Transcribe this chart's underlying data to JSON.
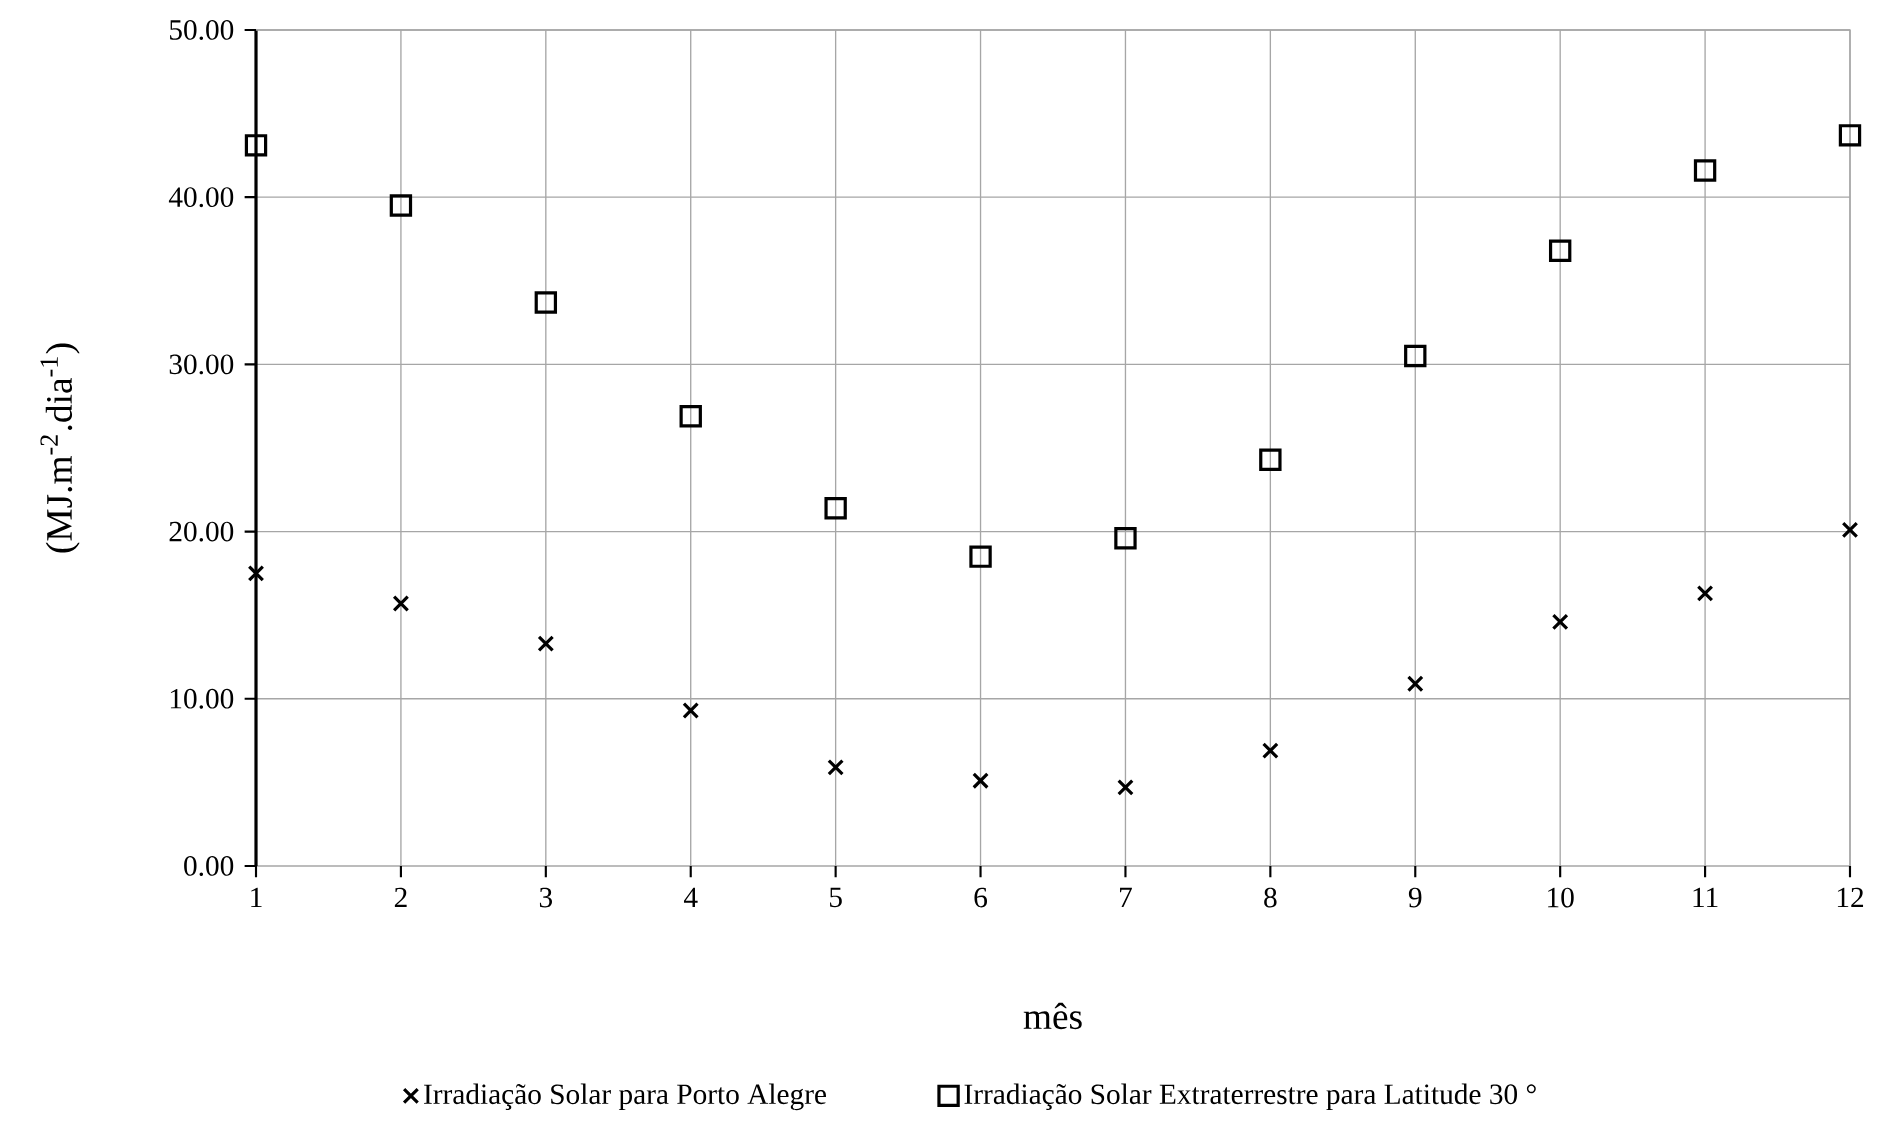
{
  "chart_data": {
    "type": "scatter",
    "xlabel": "mês",
    "ylabel": "(MJ.m$^{-2}$.dia$^{-1}$)",
    "x": [
      1,
      2,
      3,
      4,
      5,
      6,
      7,
      8,
      9,
      10,
      11,
      12
    ],
    "series": [
      {
        "name": "Irradiação Solar para Porto Alegre",
        "color": "#000000",
        "marker": "cross",
        "values": [
          17.5,
          15.7,
          13.3,
          9.3,
          5.9,
          5.1,
          4.7,
          6.9,
          10.9,
          14.6,
          16.3,
          20.1
        ]
      },
      {
        "name": "Irradiação Solar Extraterrestre para Latitude 30 °",
        "color": "#000000",
        "marker": "square",
        "values": [
          43.1,
          39.5,
          33.7,
          26.9,
          21.4,
          18.5,
          19.6,
          24.3,
          30.5,
          36.8,
          41.6,
          43.7
        ]
      }
    ],
    "xlim": [
      1,
      12
    ],
    "xticks": [
      1,
      2,
      3,
      4,
      5,
      6,
      7,
      8,
      9,
      10,
      11,
      12
    ],
    "ylim": [
      0,
      50
    ],
    "yticks": [
      {
        "value": 0,
        "label": "0.00"
      },
      {
        "value": 10,
        "label": "10.00"
      },
      {
        "value": 20,
        "label": "20.00"
      },
      {
        "value": 30,
        "label": "30.00"
      },
      {
        "value": 40,
        "label": "40.00"
      },
      {
        "value": 50,
        "label": "50.00"
      }
    ],
    "grid": true,
    "legend": "bottom"
  }
}
